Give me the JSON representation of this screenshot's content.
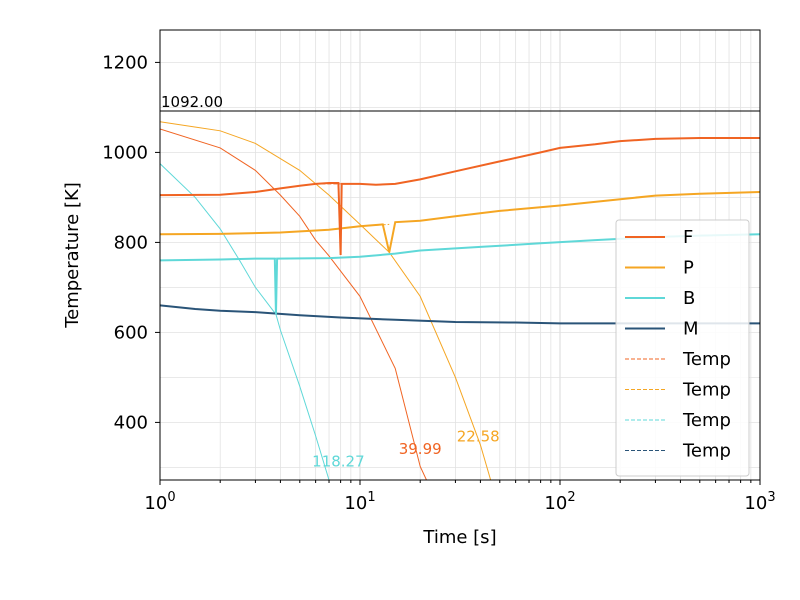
{
  "chart_data": {
    "type": "line",
    "x_scale": "log",
    "xlim": [
      1,
      1000
    ],
    "ylim": [
      272,
      1272
    ],
    "xlabel": "Time [s]",
    "ylabel": "Temperature [K]",
    "x_ticks": [
      {
        "value": 1,
        "base": "10",
        "exp": "0"
      },
      {
        "value": 10,
        "base": "10",
        "exp": "1"
      },
      {
        "value": 100,
        "base": "10",
        "exp": "2"
      },
      {
        "value": 1000,
        "base": "10",
        "exp": "3"
      }
    ],
    "y_ticks": [
      "400",
      "600",
      "800",
      "1000",
      "1200"
    ],
    "grid": true,
    "legend_position": "center-right",
    "hline": {
      "y": 1092.0,
      "label": "1092.00",
      "color": "#000000"
    },
    "series": [
      {
        "name": "F",
        "style": "solid",
        "width": 2,
        "color": "#f06423",
        "points": [
          [
            1,
            905
          ],
          [
            2,
            906
          ],
          [
            3,
            912
          ],
          [
            4,
            920
          ],
          [
            5,
            926
          ],
          [
            6,
            930
          ],
          [
            7,
            932
          ],
          [
            7.8,
            932
          ],
          [
            8,
            772
          ],
          [
            8.1,
            930
          ],
          [
            10,
            930
          ],
          [
            12,
            928
          ],
          [
            15,
            930
          ],
          [
            20,
            940
          ],
          [
            30,
            958
          ],
          [
            50,
            980
          ],
          [
            80,
            1000
          ],
          [
            100,
            1010
          ],
          [
            150,
            1018
          ],
          [
            200,
            1025
          ],
          [
            300,
            1030
          ],
          [
            500,
            1032
          ],
          [
            1000,
            1032
          ]
        ]
      },
      {
        "name": "P",
        "style": "solid",
        "width": 2,
        "color": "#f5a623",
        "points": [
          [
            1,
            818
          ],
          [
            2,
            819
          ],
          [
            4,
            822
          ],
          [
            7,
            828
          ],
          [
            10,
            836
          ],
          [
            13,
            840
          ],
          [
            14,
            778
          ],
          [
            15,
            845
          ],
          [
            20,
            848
          ],
          [
            30,
            858
          ],
          [
            50,
            870
          ],
          [
            100,
            882
          ],
          [
            200,
            896
          ],
          [
            300,
            904
          ],
          [
            500,
            908
          ],
          [
            1000,
            912
          ]
        ]
      },
      {
        "name": "B",
        "style": "solid",
        "width": 2,
        "color": "#5fd8d8",
        "points": [
          [
            1,
            760
          ],
          [
            2,
            762
          ],
          [
            3,
            764
          ],
          [
            3.75,
            764
          ],
          [
            3.8,
            640
          ],
          [
            3.85,
            764
          ],
          [
            7,
            765
          ],
          [
            10,
            768
          ],
          [
            15,
            775
          ],
          [
            20,
            782
          ],
          [
            40,
            790
          ],
          [
            80,
            798
          ],
          [
            150,
            805
          ],
          [
            300,
            812
          ],
          [
            500,
            815
          ],
          [
            1000,
            818
          ]
        ]
      },
      {
        "name": "M",
        "style": "solid",
        "width": 2,
        "color": "#2a5478",
        "points": [
          [
            1,
            660
          ],
          [
            1.5,
            652
          ],
          [
            2,
            648
          ],
          [
            3,
            645
          ],
          [
            5,
            638
          ],
          [
            8,
            633
          ],
          [
            15,
            628
          ],
          [
            30,
            623
          ],
          [
            60,
            622
          ],
          [
            100,
            620
          ],
          [
            300,
            620
          ],
          [
            1000,
            620
          ]
        ]
      },
      {
        "name": "Temp",
        "style": "dashed",
        "width": 1,
        "color": "#f06423",
        "points": [
          [
            1,
            905
          ],
          [
            2,
            906
          ],
          [
            3,
            912
          ],
          [
            4,
            920
          ],
          [
            5,
            926
          ],
          [
            6,
            930
          ],
          [
            8,
            930
          ]
        ]
      },
      {
        "name": "Temp",
        "style": "dashed",
        "width": 1,
        "color": "#f5a623",
        "points": [
          [
            1,
            818
          ],
          [
            2,
            819
          ],
          [
            4,
            822
          ],
          [
            7,
            828
          ],
          [
            10,
            836
          ],
          [
            14,
            840
          ]
        ]
      },
      {
        "name": "Temp",
        "style": "dashed",
        "width": 1,
        "color": "#5fd8d8",
        "points": [
          [
            1,
            760
          ],
          [
            2,
            762
          ],
          [
            3,
            764
          ],
          [
            3.8,
            764
          ]
        ]
      },
      {
        "name": "Temp",
        "style": "dashed",
        "width": 1,
        "color": "#2a5478",
        "points": [
          [
            1,
            660
          ],
          [
            1.5,
            652
          ],
          [
            2,
            648
          ],
          [
            3,
            645
          ]
        ]
      }
    ],
    "decay_curves": [
      {
        "color": "#f06423",
        "points": [
          [
            1,
            1052
          ],
          [
            2,
            1010
          ],
          [
            3,
            960
          ],
          [
            4,
            905
          ],
          [
            5,
            858
          ],
          [
            6,
            805
          ],
          [
            7,
            770
          ],
          [
            10,
            680
          ],
          [
            15,
            520
          ],
          [
            20,
            302
          ],
          [
            21.5,
            272
          ]
        ]
      },
      {
        "color": "#f5a623",
        "points": [
          [
            1,
            1068
          ],
          [
            2,
            1048
          ],
          [
            3,
            1020
          ],
          [
            5,
            960
          ],
          [
            7,
            905
          ],
          [
            10,
            840
          ],
          [
            14,
            778
          ],
          [
            20,
            680
          ],
          [
            30,
            500
          ],
          [
            40,
            350
          ],
          [
            45,
            272
          ]
        ]
      },
      {
        "color": "#5fd8d8",
        "points": [
          [
            1,
            975
          ],
          [
            1.5,
            900
          ],
          [
            2,
            830
          ],
          [
            2.5,
            760
          ],
          [
            3,
            700
          ],
          [
            3.8,
            640
          ],
          [
            4,
            605
          ],
          [
            5,
            480
          ],
          [
            6,
            370
          ],
          [
            7,
            272
          ]
        ]
      }
    ],
    "annotations": [
      {
        "text": "39.99",
        "x": 20,
        "y": 330,
        "color": "#f06423"
      },
      {
        "text": "22.58",
        "x": 39,
        "y": 358,
        "color": "#f5a623"
      },
      {
        "text": "118.27",
        "x": 7.8,
        "y": 302,
        "color": "#5fd8d8"
      }
    ]
  }
}
